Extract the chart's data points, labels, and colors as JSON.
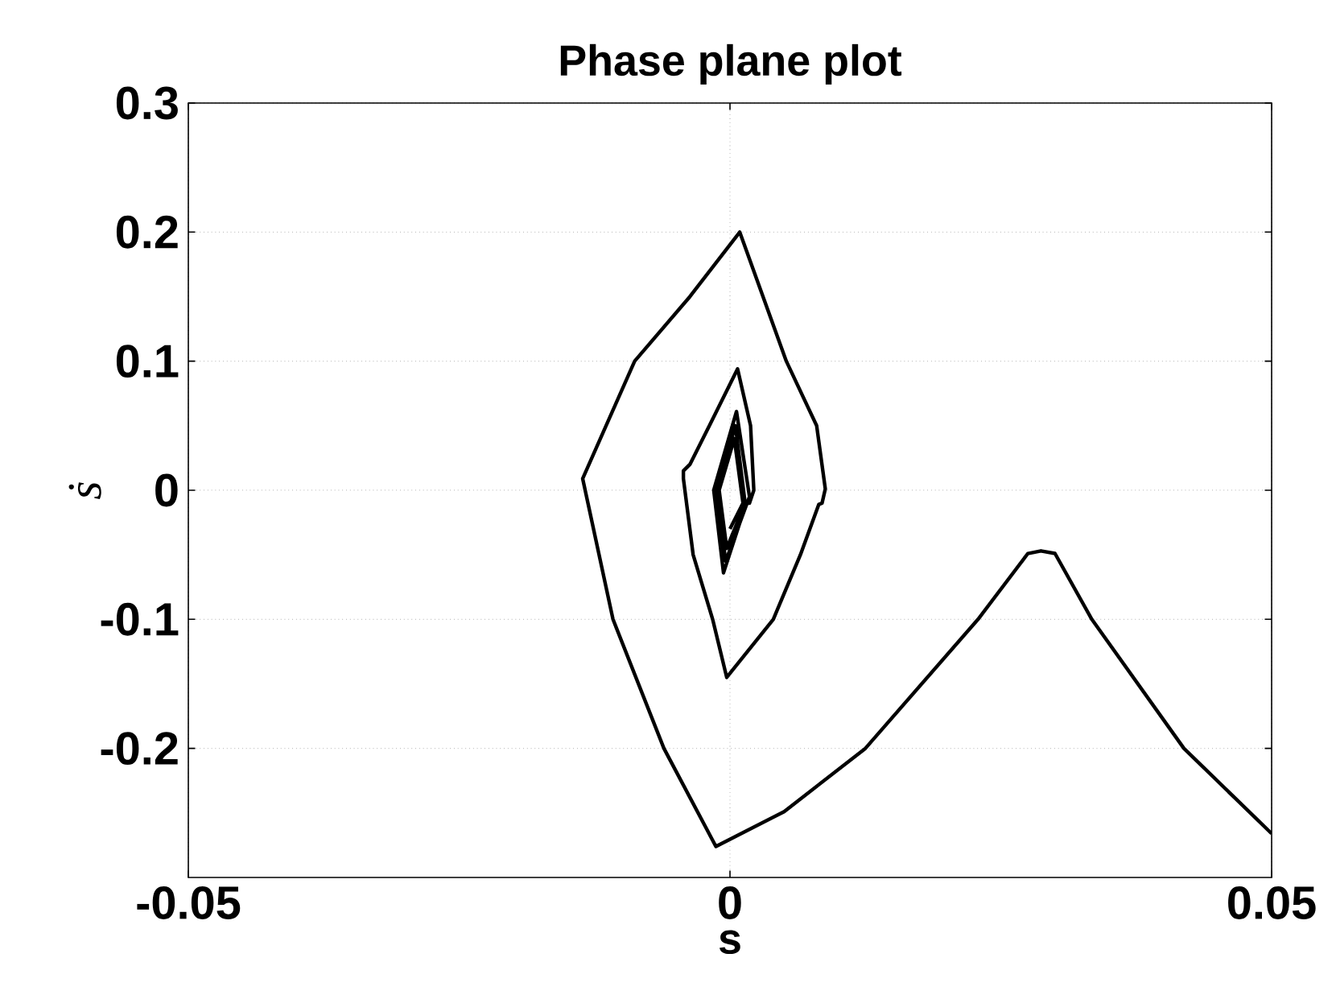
{
  "chart_data": {
    "type": "line",
    "title": "Phase plane plot",
    "xlabel": "s",
    "ylabel": "ṡ",
    "xlim": [
      -0.05,
      0.05
    ],
    "ylim": [
      -0.3,
      0.3
    ],
    "xticks": [
      -0.05,
      0,
      0.05
    ],
    "yticks": [
      -0.2,
      -0.1,
      0,
      0.1,
      0.2,
      0.3
    ],
    "grid": true,
    "marker": "none",
    "line_style": "solid",
    "series": [
      {
        "color": "#000000",
        "x": [
          0.05,
          0.0419,
          0.0334,
          0.03,
          0.0287,
          0.0275,
          0.0229,
          0.0125,
          0.005,
          -0.0013,
          -0.0061,
          -0.0108,
          -0.0136,
          -0.0088,
          -0.0037,
          0.0009,
          0.0052,
          0.008,
          0.0088,
          0.0085,
          0.0082,
          0.0065,
          0.004,
          -0.0003,
          -0.0016,
          -0.0034,
          -0.0043,
          -0.0043,
          -0.0037,
          -0.0019,
          0.0007,
          0.0019,
          0.0022,
          0.0018,
          0.0015,
          -0.0006,
          -0.0015,
          0.0006,
          0.0018,
          -0.0004,
          -0.0012,
          0.0005,
          0.0014,
          -0.0003,
          -0.001,
          0.0004,
          0.0012,
          0.0
        ],
        "values": [
          -0.266,
          -0.2,
          -0.1,
          -0.049,
          -0.047,
          -0.049,
          -0.1,
          -0.2,
          -0.249,
          -0.276,
          -0.2,
          -0.1,
          0.009,
          0.1,
          0.15,
          0.2,
          0.1,
          0.05,
          0.001,
          -0.01,
          -0.011,
          -0.05,
          -0.1,
          -0.145,
          -0.1,
          -0.05,
          0.009,
          0.015,
          0.02,
          0.05,
          0.094,
          0.05,
          0.0,
          -0.01,
          -0.01,
          -0.064,
          0.0,
          0.061,
          -0.005,
          -0.055,
          0.0,
          0.05,
          -0.01,
          -0.045,
          0.0,
          0.04,
          -0.01,
          -0.03
        ]
      }
    ]
  }
}
